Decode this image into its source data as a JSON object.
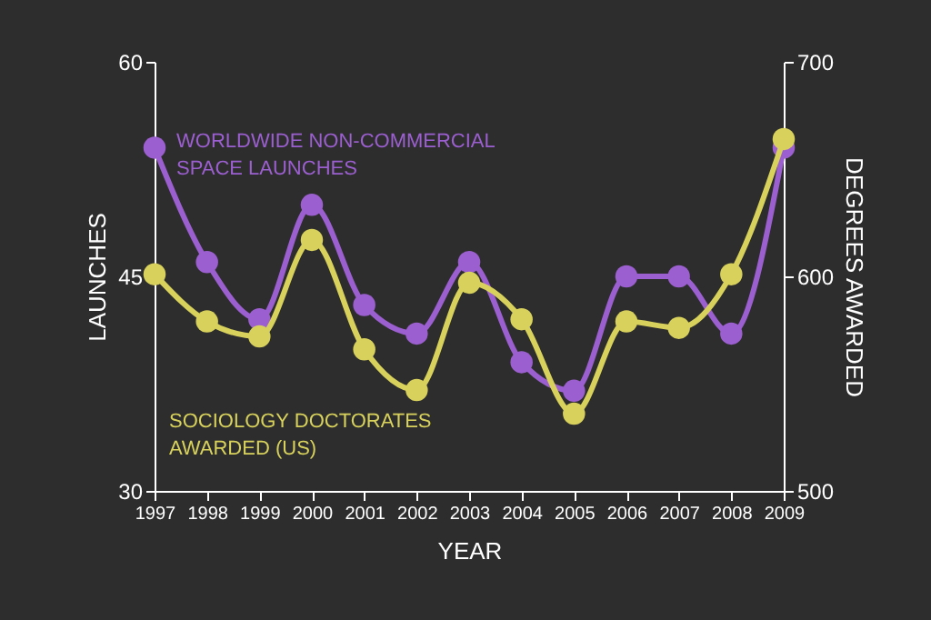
{
  "chart_data": {
    "type": "line",
    "xlabel": "YEAR",
    "ylabel": "LAUNCHES",
    "y2label": "DEGREES AWARDED",
    "x": [
      1997,
      1998,
      1999,
      2000,
      2001,
      2002,
      2003,
      2004,
      2005,
      2006,
      2007,
      2008,
      2009
    ],
    "xlim": [
      1997,
      2009
    ],
    "xticks": [
      1997,
      1998,
      1999,
      2000,
      2001,
      2002,
      2003,
      2004,
      2005,
      2006,
      2007,
      2008,
      2009
    ],
    "ylim": [
      30,
      60
    ],
    "yticks": [
      30,
      45,
      60
    ],
    "y2lim": [
      500,
      700
    ],
    "y2ticks": [
      500,
      600,
      700
    ],
    "grid": false,
    "marker": "circle",
    "line_style": "solid",
    "series": [
      {
        "name": "WORLDWIDE NON-COMMERCIAL SPACE LAUNCHES",
        "color": "#9c5fd0",
        "values": [
          54,
          46,
          42,
          50,
          43,
          41,
          46,
          39,
          37,
          45,
          45,
          41,
          54
        ]
      },
      {
        "name": "SOCIOLOGY DOCTORATES AWARDED (US)",
        "color": "#d8d25c",
        "axis": "y2",
        "values": [
          601,
          579,
          572,
          617,
          566,
          547,
          597,
          580,
          536,
          579,
          576,
          601,
          664
        ]
      }
    ]
  }
}
